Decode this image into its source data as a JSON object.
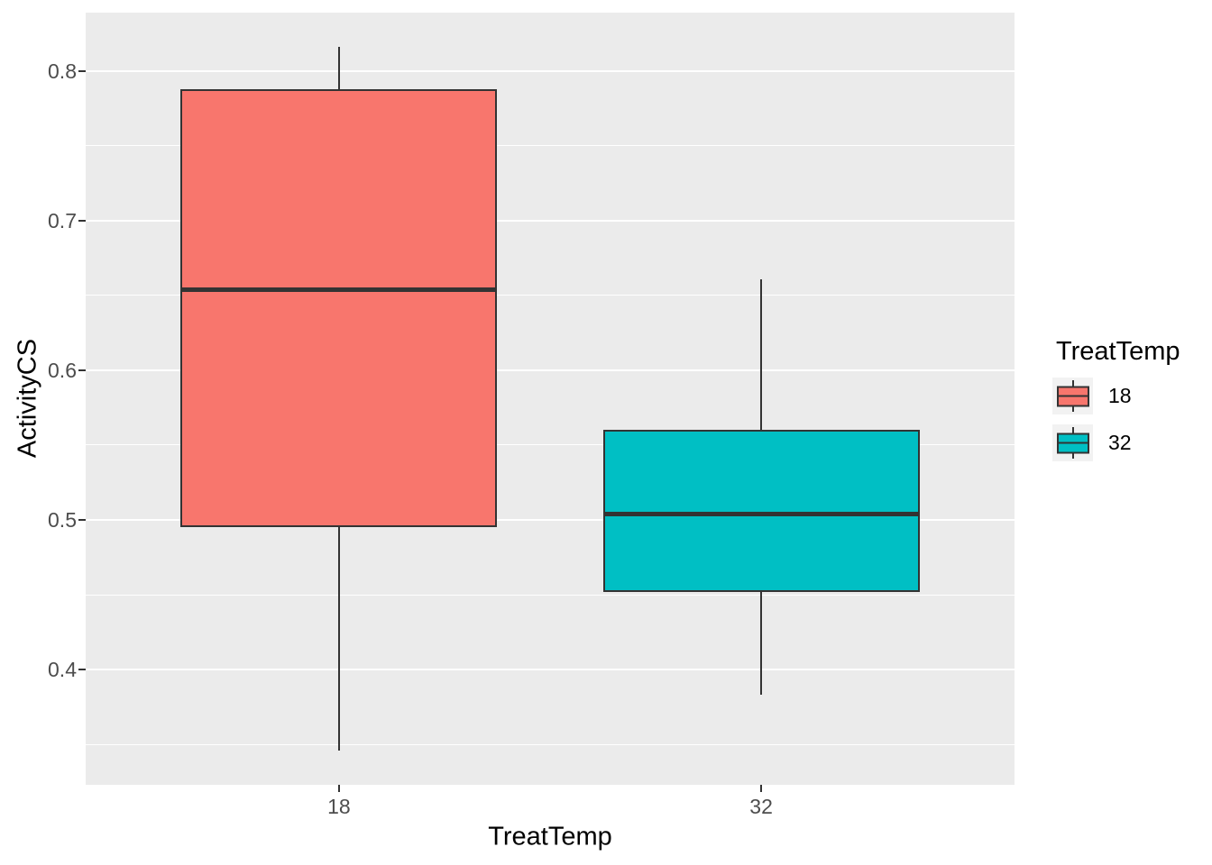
{
  "figure": {
    "background": "#FFFFFF",
    "panel_background": "#EBEBEB",
    "gridline_color": "#FFFFFF",
    "box_border_color": "#333333",
    "tick_label_color": "#4D4D4D",
    "axis_title_color": "#000000",
    "legend_key_background": "#F2F2F2"
  },
  "chart_data": {
    "type": "boxplot",
    "title": "",
    "xlabel": "TreatTemp",
    "ylabel": "ActivityCS",
    "categories": [
      "18",
      "32"
    ],
    "series": [
      {
        "name": "18",
        "color": "#F8766D",
        "min": 0.346,
        "q1": 0.495,
        "median": 0.654,
        "q3": 0.788,
        "max": 0.816
      },
      {
        "name": "32",
        "color": "#00BFC4",
        "min": 0.383,
        "q1": 0.452,
        "median": 0.504,
        "q3": 0.56,
        "max": 0.661
      }
    ],
    "ylim": [
      0.323,
      0.839
    ],
    "yticks": [
      0.4,
      0.5,
      0.6,
      0.7,
      0.8
    ],
    "ytick_labels": [
      "0.4",
      "0.5",
      "0.6",
      "0.7",
      "0.8"
    ],
    "yminor": [
      0.35,
      0.45,
      0.55,
      0.65,
      0.75
    ],
    "grid": true,
    "legend": {
      "title": "TreatTemp",
      "position": "right",
      "entries": [
        {
          "label": "18",
          "color": "#F8766D"
        },
        {
          "label": "32",
          "color": "#00BFC4"
        }
      ]
    }
  }
}
